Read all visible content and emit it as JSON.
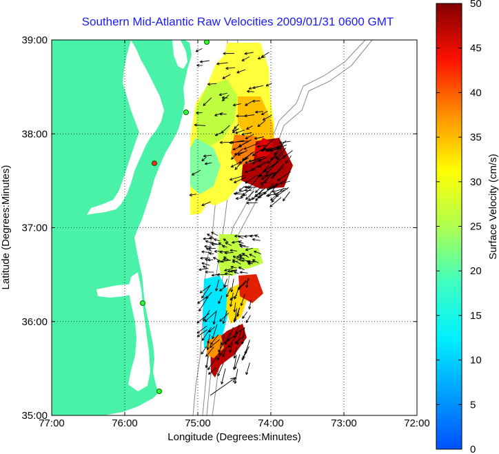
{
  "title": "Southern Mid-Atlantic Raw Velocities 2009/01/31 0600 GMT",
  "xaxis": {
    "label": "Longitude (Degrees:Minutes)",
    "ticks": [
      "77:00",
      "76:00",
      "75:00",
      "74:00",
      "73:00",
      "72:00"
    ],
    "range": [
      -77,
      -72
    ]
  },
  "yaxis": {
    "label": "Latitude (Degrees:Minutes)",
    "ticks": [
      "39:00",
      "38:00",
      "37:00",
      "36:00",
      "35:00"
    ],
    "range": [
      35,
      39
    ]
  },
  "colorbar": {
    "label": "Surface Velocity (cm/s)",
    "ticks": [
      "50",
      "45",
      "40",
      "35",
      "30",
      "25",
      "20",
      "15",
      "10",
      "5",
      "0"
    ],
    "range": [
      0,
      50
    ]
  },
  "grid": true,
  "colors": {
    "land": "#4af2a8",
    "title": "#1a1aff",
    "bathymetry": "#888888",
    "arrows": "#000000"
  }
}
